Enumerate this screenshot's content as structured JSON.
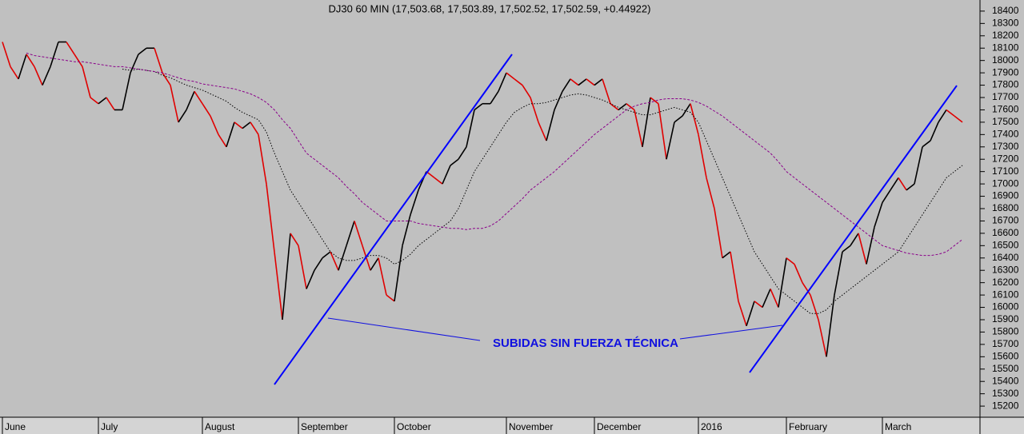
{
  "chart_data": {
    "type": "line",
    "title": "DJ30 60 MIN (17,503.68, 17,503.89, 17,502.52, 17,502.59, +0.44922)",
    "annotation": "SUBIDAS SIN FUERZA TÉCNICA",
    "categories": [
      "June",
      null,
      null,
      null,
      null,
      null,
      null,
      null,
      null,
      null,
      null,
      null,
      "July",
      null,
      null,
      null,
      null,
      null,
      null,
      null,
      null,
      null,
      null,
      null,
      null,
      "August",
      null,
      null,
      null,
      null,
      null,
      null,
      null,
      null,
      null,
      null,
      null,
      "September",
      null,
      null,
      null,
      null,
      null,
      null,
      null,
      null,
      null,
      null,
      null,
      "October",
      null,
      null,
      null,
      null,
      null,
      null,
      null,
      null,
      null,
      null,
      null,
      null,
      null,
      "November",
      null,
      null,
      null,
      null,
      null,
      null,
      null,
      null,
      null,
      null,
      "December",
      null,
      null,
      null,
      null,
      null,
      null,
      null,
      null,
      null,
      null,
      null,
      null,
      "2016",
      null,
      null,
      null,
      null,
      null,
      null,
      null,
      null,
      null,
      null,
      "February",
      null,
      null,
      null,
      null,
      null,
      null,
      null,
      null,
      null,
      null,
      null,
      "March",
      null,
      null,
      null,
      null,
      null,
      null,
      null,
      null,
      null,
      null
    ],
    "series": [
      {
        "color": "#000000",
        "down_color": "#e00000",
        "style": "price",
        "values": [
          18150,
          17950,
          17850,
          18050,
          17950,
          17800,
          17950,
          18150,
          18150,
          18050,
          17950,
          17700,
          17650,
          17700,
          17600,
          17600,
          17900,
          18050,
          18100,
          18100,
          17900,
          17800,
          17500,
          17600,
          17750,
          17650,
          17550,
          17400,
          17300,
          17500,
          17450,
          17500,
          17400,
          17000,
          16450,
          15900,
          16600,
          16500,
          16150,
          16300,
          16400,
          16450,
          16300,
          16500,
          16700,
          16500,
          16300,
          16400,
          16100,
          16050,
          16500,
          16750,
          16950,
          17100,
          17050,
          17000,
          17150,
          17200,
          17300,
          17600,
          17650,
          17650,
          17750,
          17900,
          17850,
          17800,
          17700,
          17500,
          17350,
          17600,
          17750,
          17850,
          17800,
          17850,
          17800,
          17850,
          17650,
          17600,
          17650,
          17600,
          17300,
          17700,
          17650,
          17200,
          17500,
          17550,
          17650,
          17400,
          17050,
          16800,
          16400,
          16450,
          16050,
          15850,
          16050,
          16000,
          16150,
          16000,
          16400,
          16350,
          16200,
          16100,
          15900,
          15600,
          16100,
          16450,
          16500,
          16600,
          16350,
          16650,
          16850,
          16950,
          17050,
          16950,
          17000,
          17300,
          17350,
          17500,
          17600,
          17550,
          17500
        ]
      },
      {
        "color": "#000000",
        "style": "dotted",
        "values": [
          null,
          null,
          null,
          null,
          null,
          null,
          null,
          null,
          null,
          null,
          null,
          null,
          null,
          null,
          null,
          17930,
          17920,
          17930,
          17920,
          17910,
          17880,
          17860,
          17830,
          17800,
          17780,
          17760,
          17730,
          17700,
          17670,
          17620,
          17580,
          17550,
          17520,
          17420,
          17250,
          17100,
          16950,
          16850,
          16750,
          16650,
          16550,
          16450,
          16400,
          16380,
          16380,
          16400,
          16420,
          16420,
          16400,
          16350,
          16380,
          16430,
          16500,
          16550,
          16600,
          16650,
          16700,
          16800,
          16950,
          17100,
          17200,
          17300,
          17400,
          17500,
          17580,
          17620,
          17650,
          17650,
          17660,
          17680,
          17700,
          17720,
          17730,
          17720,
          17700,
          17680,
          17650,
          17620,
          17600,
          17580,
          17560,
          17560,
          17580,
          17600,
          17620,
          17600,
          17580,
          17500,
          17350,
          17200,
          17050,
          16900,
          16750,
          16600,
          16450,
          16350,
          16250,
          16150,
          16100,
          16050,
          16000,
          15950,
          15950,
          15980,
          16050,
          16100,
          16150,
          16200,
          16250,
          16300,
          16350,
          16400,
          16450,
          16550,
          16650,
          16750,
          16850,
          16950,
          17050,
          17100,
          17150
        ]
      },
      {
        "color": "#8a008a",
        "style": "dashed",
        "values": [
          null,
          null,
          null,
          18060,
          18040,
          18030,
          18020,
          18010,
          18000,
          17990,
          17990,
          17980,
          17970,
          17960,
          17950,
          17950,
          17940,
          17930,
          17920,
          17910,
          17900,
          17880,
          17860,
          17840,
          17830,
          17810,
          17800,
          17790,
          17780,
          17770,
          17750,
          17730,
          17700,
          17660,
          17600,
          17520,
          17450,
          17350,
          17250,
          17200,
          17150,
          17100,
          17050,
          16980,
          16920,
          16850,
          16800,
          16750,
          16700,
          16700,
          16700,
          16700,
          16680,
          16670,
          16660,
          16650,
          16640,
          16640,
          16630,
          16640,
          16640,
          16660,
          16700,
          16760,
          16820,
          16880,
          16950,
          17000,
          17050,
          17100,
          17160,
          17220,
          17280,
          17340,
          17400,
          17450,
          17500,
          17550,
          17600,
          17630,
          17650,
          17660,
          17680,
          17690,
          17690,
          17690,
          17680,
          17660,
          17630,
          17590,
          17550,
          17500,
          17450,
          17400,
          17350,
          17300,
          17250,
          17180,
          17100,
          17050,
          17000,
          16950,
          16900,
          16850,
          16800,
          16750,
          16700,
          16650,
          16600,
          16550,
          16500,
          16480,
          16460,
          16440,
          16430,
          16420,
          16420,
          16430,
          16450,
          16500,
          16550
        ]
      }
    ],
    "trendlines": [
      {
        "color": "#0000ff",
        "x": [
          34,
          63.7
        ],
        "values": [
          15375,
          18050
        ]
      },
      {
        "color": "#0000ff",
        "x": [
          93.4,
          119.3
        ],
        "values": [
          15472,
          17797
        ]
      }
    ],
    "ylim": [
      15110,
      18490
    ],
    "yticks": [
      15200,
      15300,
      15400,
      15500,
      15600,
      15700,
      15800,
      15900,
      16000,
      16100,
      16200,
      16300,
      16400,
      16500,
      16600,
      16700,
      16800,
      16900,
      17000,
      17100,
      17200,
      17300,
      17400,
      17500,
      17600,
      17700,
      17800,
      17900,
      18000,
      18100,
      18200,
      18300,
      18400
    ]
  }
}
